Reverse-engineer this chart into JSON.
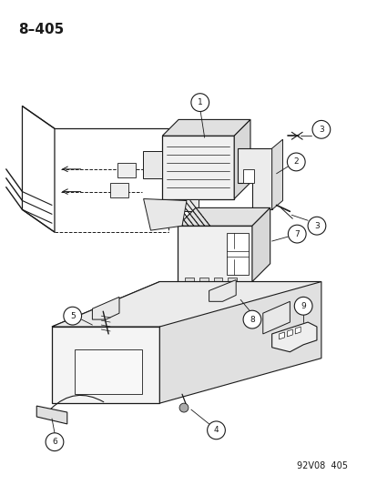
{
  "title": "8–405",
  "footer": "92V08  405",
  "bg_color": "#ffffff",
  "title_fontsize": 11,
  "footer_fontsize": 7,
  "line_color": "#1a1a1a",
  "fig_width": 4.03,
  "fig_height": 5.33
}
